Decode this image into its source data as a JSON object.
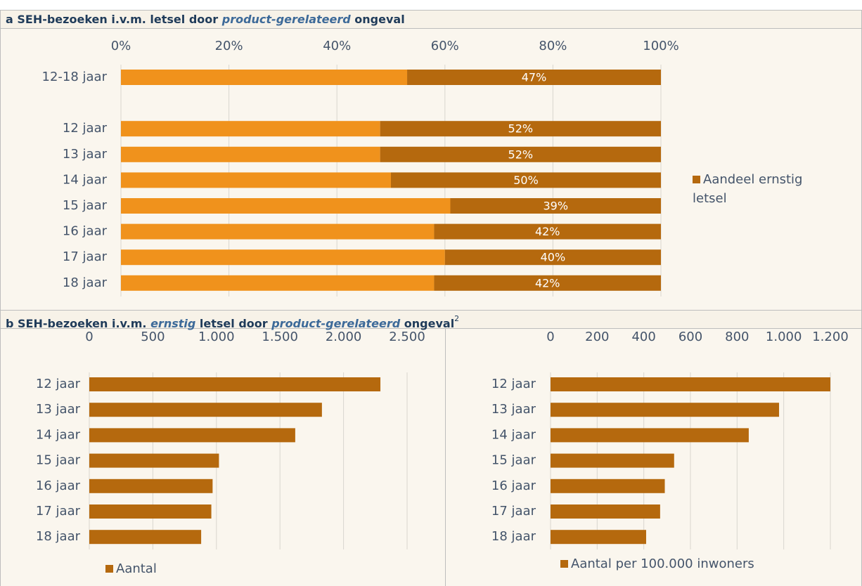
{
  "sections": [
    {
      "title": [
        "a SEH-bezoeken i.v.m. letsel door ",
        "product-gerelateerd",
        " ongeval"
      ]
    },
    {
      "title": [
        "b SEH-bezoeken i.v.m. ",
        "ernstig",
        " letsel door ",
        "product-gerelateerd",
        " ongeval"
      ],
      "note": "2"
    }
  ],
  "chart_data": [
    {
      "type": "bar",
      "orientation": "horizontal",
      "stacked": true,
      "categories": [
        "12-18 jaar",
        null,
        "12 jaar",
        "13 jaar",
        "14 jaar",
        "15 jaar",
        "16 jaar",
        "17 jaar",
        "18 jaar"
      ],
      "series": [
        {
          "color": "#f0921c",
          "values": [
            53,
            null,
            48,
            48,
            50,
            61,
            58,
            60,
            58
          ]
        },
        {
          "name": "Aandeel ernstig letsel",
          "color": "#b5690e",
          "values": [
            47,
            null,
            52,
            52,
            50,
            39,
            42,
            40,
            42
          ],
          "value_labels": [
            "47%",
            null,
            "52%",
            "52%",
            "50%",
            "39%",
            "42%",
            "40%",
            "42%"
          ]
        }
      ],
      "xlim": [
        0,
        100
      ],
      "xticks": [
        {
          "value": 0,
          "label": "0%"
        },
        {
          "value": 20,
          "label": "20%"
        },
        {
          "value": 40,
          "label": "40%"
        },
        {
          "value": 60,
          "label": "60%"
        },
        {
          "value": 80,
          "label": "80%"
        },
        {
          "value": 100,
          "label": "100%"
        }
      ],
      "grid": true,
      "legend": "right"
    },
    {
      "type": "bar",
      "orientation": "horizontal",
      "categories": [
        "12 jaar",
        "13 jaar",
        "14 jaar",
        "15 jaar",
        "16 jaar",
        "17 jaar",
        "18 jaar"
      ],
      "series": [
        {
          "name": "Aantal",
          "color": "#b5690e",
          "values": [
            2290,
            1830,
            1620,
            1020,
            970,
            960,
            880
          ]
        }
      ],
      "xlim": [
        0,
        2500
      ],
      "xticks": [
        0,
        500,
        {
          "value": 1000,
          "label": "1.000"
        },
        {
          "value": 1500,
          "label": "1.500"
        },
        {
          "value": 2000,
          "label": "2.000"
        },
        {
          "value": 2500,
          "label": "2.500"
        }
      ],
      "grid": true,
      "legend": "bottom"
    },
    {
      "type": "bar",
      "orientation": "horizontal",
      "categories": [
        "12 jaar",
        "13 jaar",
        "14 jaar",
        "15 jaar",
        "16 jaar",
        "17 jaar",
        "18 jaar"
      ],
      "series": [
        {
          "name": "Aantal per 100.000 inwoners",
          "color": "#b5690e",
          "values": [
            1200,
            980,
            850,
            530,
            490,
            470,
            410
          ]
        }
      ],
      "xlim": [
        0,
        1200
      ],
      "xticks": [
        0,
        200,
        400,
        600,
        800,
        {
          "value": 1000,
          "label": "1.000"
        },
        {
          "value": 1200,
          "label": "1.200"
        }
      ],
      "grid": true,
      "legend": "bottom"
    }
  ]
}
